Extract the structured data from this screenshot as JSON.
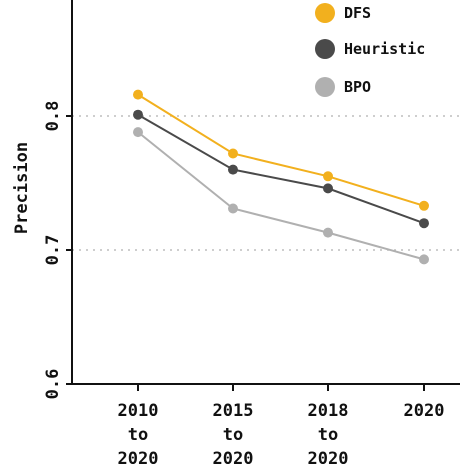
{
  "chart_data": {
    "type": "line",
    "title": "",
    "xlabel": "",
    "ylabel": "Precision",
    "categories": [
      [
        "2010",
        "to",
        "2020"
      ],
      [
        "2015",
        "to",
        "2020"
      ],
      [
        "2018",
        "to",
        "2020"
      ],
      [
        "2020"
      ]
    ],
    "ylim": [
      0.6,
      0.88
    ],
    "yticks": [
      0.6,
      0.7,
      0.8
    ],
    "ytick_labels": [
      "0.6",
      "0.7",
      "0.8"
    ],
    "grid": "dotted horizontal lines at 0.7 and 0.8",
    "legend_position": "top-right",
    "series": [
      {
        "name": "DFS",
        "color": "#f2b01e",
        "values": [
          0.816,
          0.772,
          0.755,
          0.733
        ]
      },
      {
        "name": "Heuristic",
        "color": "#4a4a4a",
        "values": [
          0.801,
          0.76,
          0.746,
          0.72
        ]
      },
      {
        "name": "BPO",
        "color": "#b0b0b0",
        "values": [
          0.788,
          0.731,
          0.713,
          0.693
        ]
      }
    ]
  }
}
